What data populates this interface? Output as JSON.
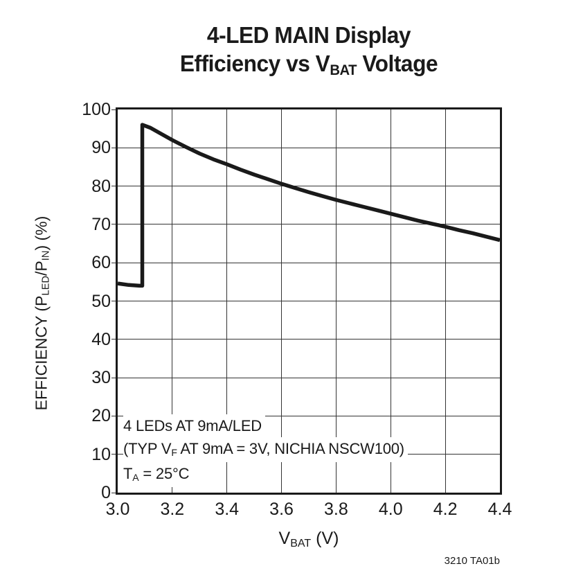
{
  "title": {
    "line1": "4-LED MAIN Display",
    "line2_pre": "Efficiency vs V",
    "line2_sub": "BAT",
    "line2_post": " Voltage"
  },
  "y_axis": {
    "pre": "EFFICIENCY (P",
    "sub1": "LED",
    "mid": "/P",
    "sub2": "IN",
    "post": ") (%)"
  },
  "x_axis": {
    "pre": "V",
    "sub": "BAT",
    "post": " (V)"
  },
  "annotation": {
    "line1": "4 LEDs AT 9mA/LED",
    "line2_pre": "(TYP V",
    "line2_sub": "F",
    "line2_post": " AT 9mA = 3V, NICHIA NSCW100)",
    "line3_pre": "T",
    "line3_sub": "A",
    "line3_post": " = 25°C"
  },
  "figure_id": "3210 TA01b",
  "colors": {
    "ink": "#1a1a1a",
    "grid": "#333333",
    "background": "#ffffff"
  },
  "chart_data": {
    "type": "line",
    "title": "4-LED MAIN Display Efficiency vs VBAT Voltage",
    "xlabel": "VBAT (V)",
    "ylabel": "EFFICIENCY (PLED/PIN) (%)",
    "xlim": [
      3.0,
      4.4
    ],
    "ylim": [
      0,
      100
    ],
    "x_ticks": [
      3.0,
      3.2,
      3.4,
      3.6,
      3.8,
      4.0,
      4.2,
      4.4
    ],
    "x_tick_labels": [
      "3.0",
      "3.2",
      "3.4",
      "3.6",
      "3.8",
      "4.0",
      "4.2",
      "4.4"
    ],
    "y_ticks": [
      0,
      10,
      20,
      30,
      40,
      50,
      60,
      70,
      80,
      90,
      100
    ],
    "y_tick_labels": [
      "0",
      "10",
      "20",
      "30",
      "40",
      "50",
      "60",
      "70",
      "80",
      "90",
      "100"
    ],
    "grid": true,
    "legend": "none",
    "line_color": "#1a1a1a",
    "line_width": 5.5,
    "annotation_lines": [
      "4 LEDs AT 9mA/LED",
      "(TYP VF AT 9mA = 3V, NICHIA NSCW100)",
      "TA = 25°C"
    ],
    "figure_id": "3210 TA01b",
    "series": [
      {
        "name": "Efficiency",
        "x": [
          3.0,
          3.04,
          3.08,
          3.09,
          3.09,
          3.12,
          3.16,
          3.2,
          3.25,
          3.3,
          3.35,
          3.4,
          3.45,
          3.5,
          3.55,
          3.6,
          3.65,
          3.7,
          3.75,
          3.8,
          3.85,
          3.9,
          3.95,
          4.0,
          4.05,
          4.1,
          4.15,
          4.2,
          4.25,
          4.3,
          4.35,
          4.4
        ],
        "y": [
          54.6,
          54.2,
          54.0,
          54.0,
          96.0,
          95.2,
          93.6,
          92.0,
          90.2,
          88.5,
          87.0,
          85.7,
          84.3,
          83.0,
          81.8,
          80.6,
          79.5,
          78.4,
          77.4,
          76.4,
          75.5,
          74.6,
          73.7,
          72.8,
          71.9,
          71.0,
          70.2,
          69.4,
          68.5,
          67.7,
          66.8,
          65.9
        ]
      }
    ]
  }
}
